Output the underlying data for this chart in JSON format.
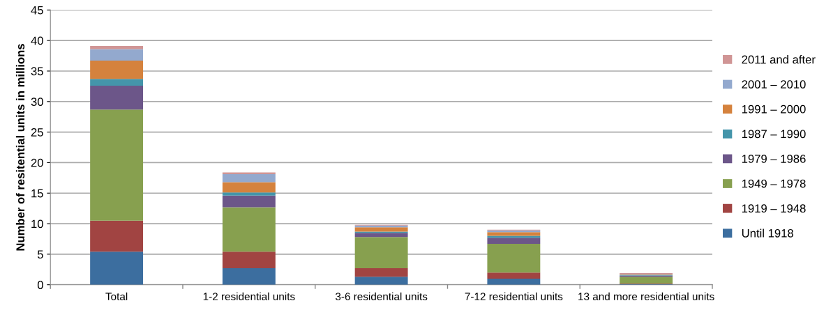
{
  "chart_data": {
    "type": "bar",
    "stacked": true,
    "ylabel": "Number of resitential units in millions",
    "categories": [
      "Total",
      "1-2 residential units",
      "3-6 residential units",
      "7-12 residential units",
      "13 and more residential units"
    ],
    "series": [
      {
        "name": "Until 1918",
        "color": "#3c6e9f",
        "values": [
          5.4,
          2.7,
          1.3,
          1.0,
          0.1
        ]
      },
      {
        "name": "1919 – 1948",
        "color": "#a14442",
        "values": [
          5.1,
          2.7,
          1.4,
          1.0,
          0.1
        ]
      },
      {
        "name": "1949 – 1978",
        "color": "#87a04f",
        "values": [
          18.2,
          7.3,
          5.1,
          4.7,
          1.1
        ]
      },
      {
        "name": "1979 – 1986",
        "color": "#6c5689",
        "values": [
          3.9,
          1.9,
          0.7,
          1.0,
          0.2
        ]
      },
      {
        "name": "1987 – 1990",
        "color": "#4495aa",
        "values": [
          1.1,
          0.5,
          0.2,
          0.3,
          0.1
        ]
      },
      {
        "name": "1991 – 2000",
        "color": "#d5823d",
        "values": [
          3.0,
          1.7,
          0.7,
          0.6,
          0.1
        ]
      },
      {
        "name": "2001 – 2010",
        "color": "#93a9ce",
        "values": [
          1.9,
          1.3,
          0.3,
          0.3,
          0.1
        ]
      },
      {
        "name": "2011 and after",
        "color": "#d09595",
        "values": [
          0.5,
          0.3,
          0.1,
          0.1,
          0.1
        ]
      }
    ],
    "ylim": [
      0,
      45
    ],
    "yticks": [
      0,
      5,
      10,
      15,
      20,
      25,
      30,
      35,
      40,
      45
    ],
    "grid": "y",
    "legend": "right"
  }
}
